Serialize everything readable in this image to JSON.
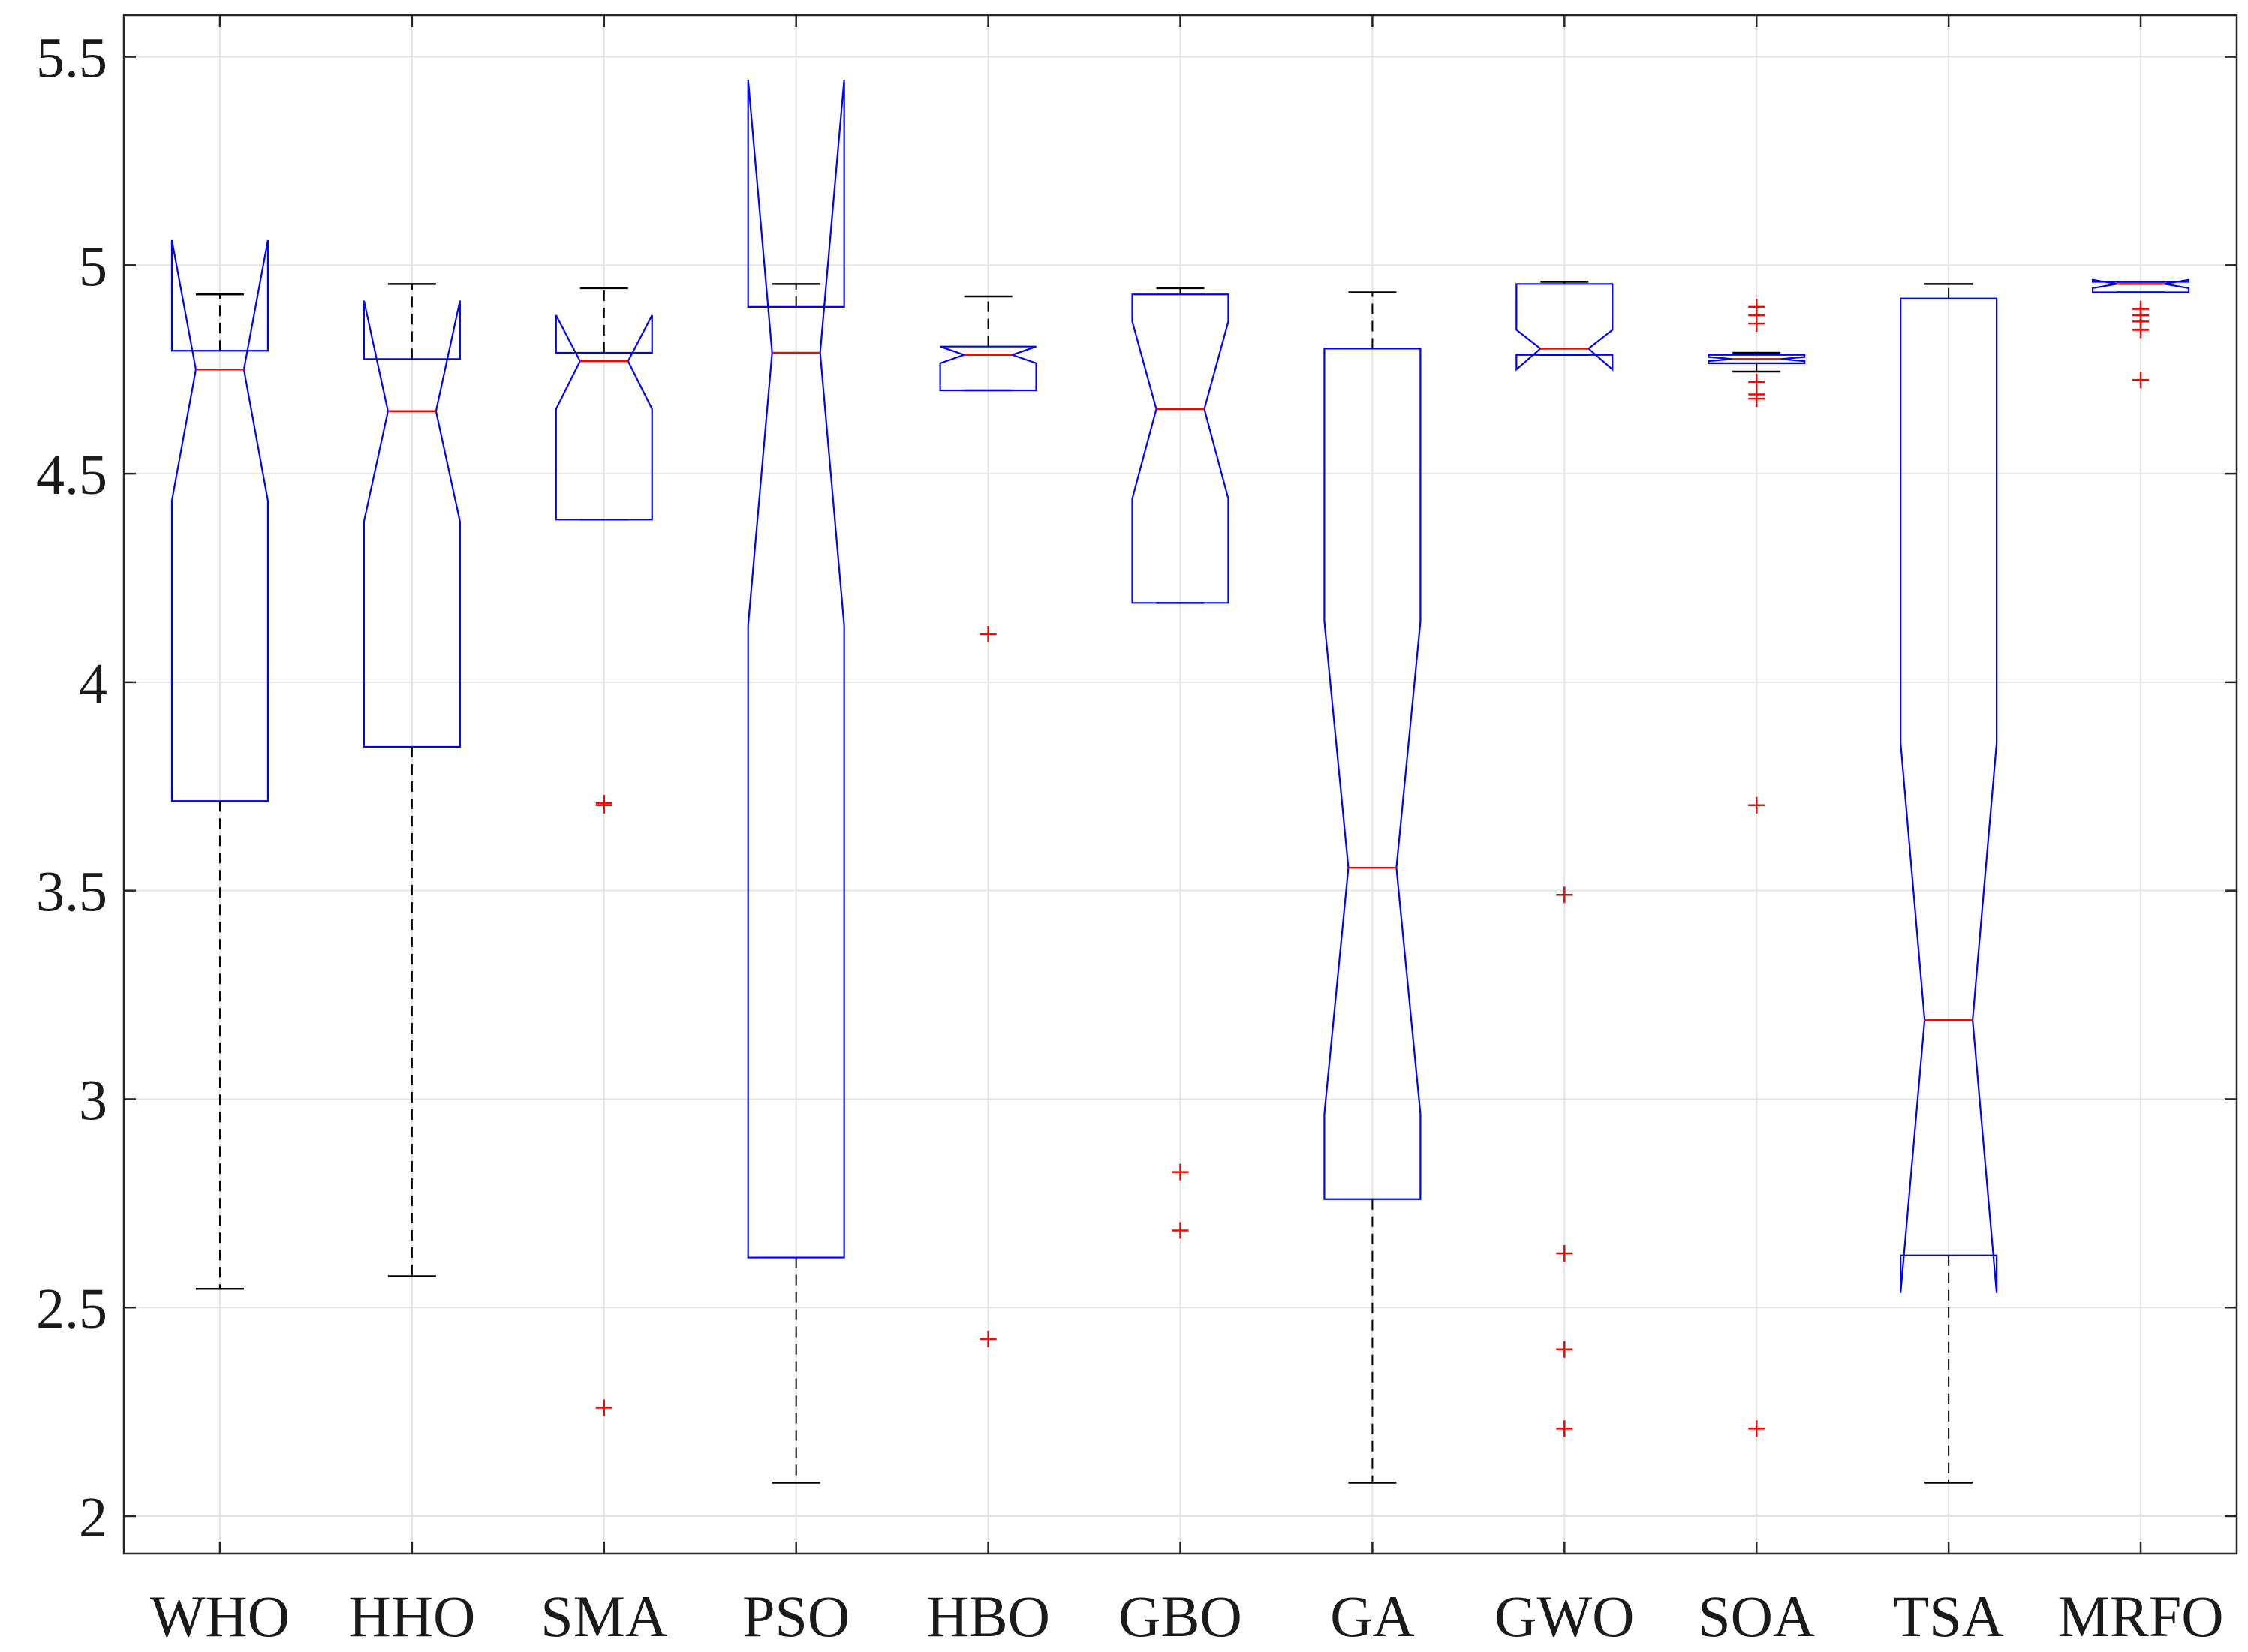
{
  "chart_data": {
    "type": "boxplot",
    "notched": true,
    "title": "",
    "xlabel": "",
    "ylabel": "",
    "ylim": [
      1.91,
      5.6
    ],
    "yticks": [
      2,
      2.5,
      3,
      3.5,
      4,
      4.5,
      5,
      5.5
    ],
    "ytick_labels": [
      "2",
      "2.5",
      "3",
      "3.5",
      "4",
      "4.5",
      "5",
      "5.5"
    ],
    "grid": true,
    "colors": {
      "box": "#0000ff",
      "median": "#ff0000",
      "whisker": "#000000",
      "outlier": "#ff0000",
      "grid": "#e3e3e3",
      "axis": "#262626"
    },
    "categories": [
      "WHO",
      "HHO",
      "SMA",
      "PSO",
      "HBO",
      "GBO",
      "GA",
      "GWO",
      "SOA",
      "TSA",
      "MRFO"
    ],
    "boxes": [
      {
        "name": "WHO",
        "whisker_low": 2.545,
        "q1": 3.715,
        "median": 4.75,
        "q3": 4.795,
        "whisker_high": 4.93,
        "notch_low": 4.435,
        "notch_high": 5.06,
        "outliers": []
      },
      {
        "name": "HHO",
        "whisker_low": 2.575,
        "q1": 3.845,
        "median": 4.65,
        "q3": 4.775,
        "whisker_high": 4.955,
        "notch_low": 4.385,
        "notch_high": 4.915,
        "outliers": []
      },
      {
        "name": "SMA",
        "whisker_low": 4.39,
        "q1": 4.39,
        "median": 4.77,
        "q3": 4.79,
        "whisker_high": 4.945,
        "notch_low": 4.655,
        "notch_high": 4.88,
        "outliers": [
          3.705,
          3.71,
          2.26
        ]
      },
      {
        "name": "PSO",
        "whisker_low": 2.08,
        "q1": 2.62,
        "median": 4.79,
        "q3": 4.9,
        "whisker_high": 4.955,
        "notch_low": 4.135,
        "notch_high": 5.445,
        "outliers": []
      },
      {
        "name": "HBO",
        "whisker_low": 4.7,
        "q1": 4.7,
        "median": 4.785,
        "q3": 4.805,
        "whisker_high": 4.925,
        "notch_low": 4.765,
        "notch_high": 4.805,
        "outliers": [
          4.115,
          2.425
        ]
      },
      {
        "name": "GBO",
        "whisker_low": 4.19,
        "q1": 4.19,
        "median": 4.655,
        "q3": 4.93,
        "whisker_high": 4.945,
        "notch_low": 4.44,
        "notch_high": 4.865,
        "outliers": [
          2.825,
          2.685
        ]
      },
      {
        "name": "GA",
        "whisker_low": 2.08,
        "q1": 2.76,
        "median": 3.555,
        "q3": 4.8,
        "whisker_high": 4.935,
        "notch_low": 2.965,
        "notch_high": 4.145,
        "outliers": []
      },
      {
        "name": "GWO",
        "whisker_low": 4.785,
        "q1": 4.785,
        "median": 4.8,
        "q3": 4.955,
        "whisker_high": 4.96,
        "notch_low": 4.75,
        "notch_high": 4.845,
        "outliers": [
          3.49,
          2.63,
          2.4,
          2.21
        ]
      },
      {
        "name": "SOA",
        "whisker_low": 4.745,
        "q1": 4.765,
        "median": 4.775,
        "q3": 4.785,
        "whisker_high": 4.79,
        "notch_low": 4.77,
        "notch_high": 4.78,
        "outliers": [
          4.9,
          4.88,
          4.86,
          4.72,
          4.69,
          4.68,
          3.705,
          2.21
        ]
      },
      {
        "name": "TSA",
        "whisker_low": 2.08,
        "q1": 2.625,
        "median": 3.19,
        "q3": 4.92,
        "whisker_high": 4.955,
        "notch_low": 2.535,
        "notch_high": 3.855,
        "outliers": []
      },
      {
        "name": "MRFO",
        "whisker_low": 4.935,
        "q1": 4.935,
        "median": 4.955,
        "q3": 4.96,
        "whisker_high": 4.96,
        "notch_low": 4.945,
        "notch_high": 4.965,
        "outliers": [
          4.895,
          4.88,
          4.865,
          4.845,
          4.725
        ]
      }
    ]
  }
}
